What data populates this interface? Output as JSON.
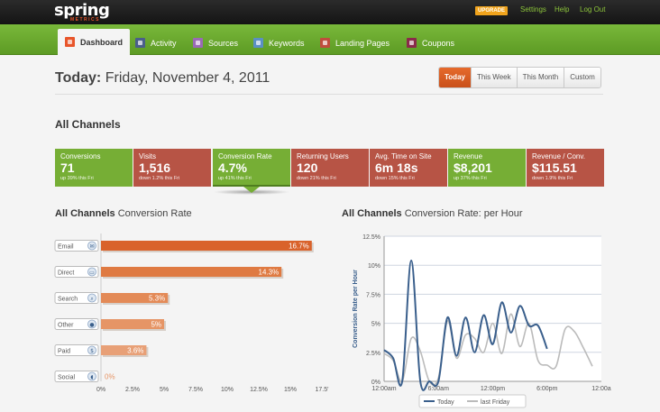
{
  "app": {
    "logo": "spring",
    "logo_sub": "METRICS",
    "upgrade_label": "UPGRADE",
    "links": [
      "Settings",
      "Help",
      "Log Out"
    ]
  },
  "nav": {
    "tabs": [
      {
        "label": "Dashboard",
        "active": true,
        "color": "#e8552a"
      },
      {
        "label": "Activity",
        "active": false,
        "color": "#4a5f8a"
      },
      {
        "label": "Sources",
        "active": false,
        "color": "#9a6ab5"
      },
      {
        "label": "Keywords",
        "active": false,
        "color": "#5b8fc4"
      },
      {
        "label": "Landing Pages",
        "active": false,
        "color": "#c04d3d"
      },
      {
        "label": "Coupons",
        "active": false,
        "color": "#8a2a4a"
      }
    ]
  },
  "header": {
    "title_bold": "Today:",
    "title_date": "Friday, November 4, 2011",
    "ranges": [
      {
        "label": "Today",
        "active": true
      },
      {
        "label": "This Week",
        "active": false
      },
      {
        "label": "This Month",
        "active": false
      },
      {
        "label": "Custom",
        "active": false
      }
    ]
  },
  "channels": {
    "title": "All Channels",
    "kpis": [
      {
        "label": "Conversions",
        "value": "71",
        "change": "up 39% this Fri",
        "tone": "green",
        "selected": false
      },
      {
        "label": "Visits",
        "value": "1,516",
        "change": "down 1.2% this Fri",
        "tone": "red",
        "selected": false
      },
      {
        "label": "Conversion Rate",
        "value": "4.7%",
        "change": "up 41% this Fri",
        "tone": "green",
        "selected": true
      },
      {
        "label": "Returning Users",
        "value": "120",
        "change": "down 21% this Fri",
        "tone": "red",
        "selected": false
      },
      {
        "label": "Avg. Time on Site",
        "value": "6m 18s",
        "change": "down 15% this Fri",
        "tone": "red",
        "selected": false
      },
      {
        "label": "Revenue",
        "value": "$8,201",
        "change": "up 37% this Fri",
        "tone": "green",
        "selected": false
      },
      {
        "label": "Revenue / Conv.",
        "value": "$115.51",
        "change": "down 1.9% this Fri",
        "tone": "red",
        "selected": false
      }
    ]
  },
  "chart_titles": {
    "left_bold": "All Channels",
    "left_rest": "Conversion Rate",
    "right_bold": "All Channels",
    "right_rest": "Conversion Rate: per Hour"
  },
  "chart_data": [
    {
      "type": "bar",
      "title": "All Channels Conversion Rate",
      "categories": [
        "Email",
        "Direct",
        "Search",
        "Other",
        "Paid",
        "Social"
      ],
      "category_icons": [
        "envelope-icon",
        "monitor-icon",
        "magnifier-icon",
        "globe-icon",
        "dollar-icon",
        "speech-bubble-icon"
      ],
      "values": [
        16.7,
        14.3,
        5.3,
        5.0,
        3.6,
        0
      ],
      "value_labels": [
        "16.7%",
        "14.3%",
        "5.3%",
        "5%",
        "3.6%",
        "0%"
      ],
      "bar_colors": [
        "#d9622b",
        "#df7a42",
        "#e38a57",
        "#e69566",
        "#e8a077",
        "#e8a077"
      ],
      "xlim": [
        0,
        17.5
      ],
      "xticks": [
        "0%",
        "2.5%",
        "5%",
        "7.5%",
        "10%",
        "12.5%",
        "15%",
        "17.5'"
      ]
    },
    {
      "type": "line",
      "title": "All Channels Conversion Rate: per Hour",
      "ylabel": "Conversion Rate per Hour",
      "ylim": [
        0,
        12.5
      ],
      "yticks": [
        "0%",
        "2.5%",
        "5%",
        "7.5%",
        "10%",
        "12.5%"
      ],
      "xlim": [
        0,
        24
      ],
      "xticks": [
        "12:00am",
        "6:00am",
        "12:00pm",
        "6:00pm",
        "12:00a"
      ],
      "series": [
        {
          "name": "Today",
          "color": "#3a5f8c",
          "x": [
            0,
            1,
            2,
            3,
            4,
            5,
            6,
            7,
            8,
            9,
            10,
            11,
            12,
            13,
            14,
            15,
            16,
            17,
            18
          ],
          "y": [
            2.7,
            2.0,
            0.0,
            10.4,
            0.0,
            0.0,
            0.0,
            5.5,
            2.2,
            5.5,
            2.5,
            5.7,
            3.2,
            6.8,
            4.2,
            6.5,
            4.8,
            4.8,
            2.8
          ]
        },
        {
          "name": "last Friday",
          "color": "#bbbbbb",
          "x": [
            0,
            1,
            2,
            3,
            4,
            5,
            6,
            7,
            8,
            9,
            10,
            11,
            12,
            13,
            14,
            15,
            16,
            17,
            18,
            19,
            20,
            21,
            22,
            23
          ],
          "y": [
            2.4,
            1.8,
            0.0,
            3.7,
            2.6,
            0.0,
            0.3,
            5.2,
            2.0,
            4.0,
            3.7,
            2.5,
            5.0,
            2.4,
            5.8,
            3.0,
            5.0,
            1.8,
            1.4,
            1.3,
            4.5,
            4.3,
            2.9,
            1.3
          ]
        }
      ]
    }
  ]
}
